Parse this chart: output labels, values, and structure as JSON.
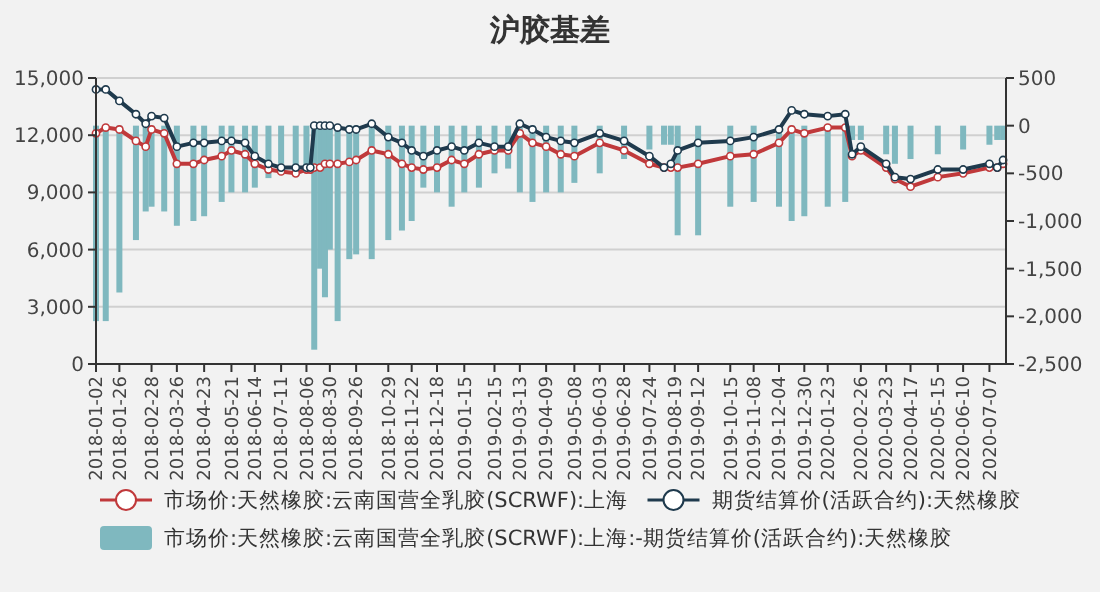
{
  "chart_data": {
    "type": "line",
    "title": "沪胶基差",
    "x": [
      "2018-01-02",
      "2018-01-12",
      "2018-01-26",
      "2018-02-12",
      "2018-02-22",
      "2018-02-28",
      "2018-03-13",
      "2018-03-26",
      "2018-04-12",
      "2018-04-23",
      "2018-05-11",
      "2018-05-21",
      "2018-06-04",
      "2018-06-14",
      "2018-06-28",
      "2018-07-11",
      "2018-07-26",
      "2018-08-06",
      "2018-08-10",
      "2018-08-14",
      "2018-08-20",
      "2018-08-25",
      "2018-08-30",
      "2018-09-07",
      "2018-09-19",
      "2018-09-26",
      "2018-10-12",
      "2018-10-29",
      "2018-11-12",
      "2018-11-22",
      "2018-12-04",
      "2018-12-18",
      "2019-01-02",
      "2019-01-15",
      "2019-01-30",
      "2019-02-15",
      "2019-03-01",
      "2019-03-13",
      "2019-03-26",
      "2019-04-09",
      "2019-04-24",
      "2019-05-08",
      "2019-06-03",
      "2019-06-28",
      "2019-07-24",
      "2019-08-08",
      "2019-08-15",
      "2019-08-22",
      "2019-09-12",
      "2019-10-15",
      "2019-11-08",
      "2019-12-04",
      "2019-12-17",
      "2019-12-30",
      "2020-01-23",
      "2020-02-10",
      "2020-02-17",
      "2020-02-26",
      "2020-03-23",
      "2020-04-01",
      "2020-04-17",
      "2020-05-15",
      "2020-06-10",
      "2020-07-07",
      "2020-07-15",
      "2020-07-21"
    ],
    "series": [
      {
        "name": "市场价:天然橡胶:云南国营全乳胶(SCRWF):上海",
        "color": "#c0393b",
        "values": [
          12100,
          12400,
          12300,
          11700,
          11400,
          12300,
          12100,
          10500,
          10500,
          10700,
          10900,
          11200,
          11000,
          10500,
          10200,
          10100,
          10000,
          10200,
          10200,
          10300,
          10300,
          10500,
          10500,
          10500,
          10600,
          10700,
          11200,
          11000,
          10500,
          10300,
          10200,
          10300,
          10700,
          10500,
          11000,
          11200,
          11200,
          12100,
          11600,
          11400,
          11000,
          10900,
          11600,
          11200,
          10500,
          10300,
          10300,
          10300,
          10500,
          10900,
          11000,
          11600,
          12300,
          12100,
          12400,
          12400,
          10900,
          11200,
          10300,
          9700,
          9300,
          9800,
          10000,
          10300,
          10300,
          10500
        ]
      },
      {
        "name": "期货结算价(活跃合约):天然橡胶",
        "color": "#1f3a4d",
        "values": [
          14400,
          14400,
          13800,
          13100,
          12600,
          13000,
          12900,
          11400,
          11600,
          11600,
          11700,
          11700,
          11600,
          10900,
          10500,
          10300,
          10300,
          10300,
          10300,
          12500,
          12500,
          12500,
          12500,
          12400,
          12300,
          12300,
          12600,
          11900,
          11600,
          11200,
          10900,
          11200,
          11400,
          11200,
          11600,
          11400,
          11400,
          12600,
          12300,
          11900,
          11700,
          11600,
          12100,
          11700,
          10900,
          10300,
          10500,
          11200,
          11600,
          11700,
          11900,
          12300,
          13300,
          13100,
          13000,
          13100,
          11000,
          11400,
          10500,
          9800,
          9700,
          10200,
          10200,
          10500,
          10300,
          10700
        ]
      },
      {
        "name": "市场价:天然橡胶:云南国营全乳胶(SCRWF):上海:-期货结算价(活跃合约):天然橡胶",
        "type": "bar",
        "axis": "y2",
        "color": "#7fb8bf",
        "values": [
          -2050,
          -2050,
          -1750,
          -1200,
          -900,
          -850,
          -900,
          -1050,
          -1000,
          -950,
          -800,
          -700,
          -700,
          -650,
          -550,
          -400,
          -450,
          -450,
          null,
          -2350,
          -1500,
          -1800,
          -1300,
          -2050,
          -1400,
          -1350,
          -1400,
          -1200,
          -1100,
          -1000,
          -650,
          -700,
          -850,
          -700,
          -650,
          -500,
          -450,
          -700,
          -800,
          -700,
          -700,
          -600,
          -500,
          -350,
          -250,
          -200,
          -200,
          -1150,
          -1150,
          -850,
          -800,
          -850,
          -1000,
          -950,
          -850,
          -800,
          -150,
          -150,
          -300,
          -400,
          -350,
          -300,
          -250,
          -200,
          -150,
          -150
        ]
      }
    ],
    "xlim": [
      "2018-01-02",
      "2020-07-24"
    ],
    "xticks": [
      "2018-01-02",
      "2018-01-26",
      "2018-02-28",
      "2018-03-26",
      "2018-04-23",
      "2018-05-21",
      "2018-06-14",
      "2018-07-11",
      "2018-08-06",
      "2018-08-30",
      "2018-09-26",
      "2018-10-29",
      "2018-11-22",
      "2018-12-18",
      "2019-01-15",
      "2019-02-15",
      "2019-03-13",
      "2019-04-09",
      "2019-05-08",
      "2019-06-03",
      "2019-06-28",
      "2019-07-24",
      "2019-08-19",
      "2019-09-12",
      "2019-10-15",
      "2019-11-08",
      "2019-12-04",
      "2019-12-30",
      "2020-01-23",
      "2020-02-26",
      "2020-03-23",
      "2020-04-17",
      "2020-05-15",
      "2020-06-10",
      "2020-07-07"
    ],
    "ylim": [
      0,
      15000
    ],
    "yticks": [
      0,
      {
        "value": 3000,
        "label": "3,000"
      },
      {
        "value": 6000,
        "label": "6,000"
      },
      {
        "value": 9000,
        "label": "9,000"
      },
      {
        "value": 12000,
        "label": "12,000"
      },
      {
        "value": 15000,
        "label": "15,000"
      }
    ],
    "y2lim": [
      -2500,
      500
    ],
    "y2ticks": [
      {
        "value": -2500,
        "label": "-2,500"
      },
      {
        "value": -2000,
        "label": "-2,000"
      },
      {
        "value": -1500,
        "label": "-1,500"
      },
      {
        "value": -1000,
        "label": "-1,000"
      },
      -500,
      0,
      500
    ],
    "grid": "y",
    "legend": "bottom",
    "marker": "circle",
    "line_style": "solid"
  }
}
